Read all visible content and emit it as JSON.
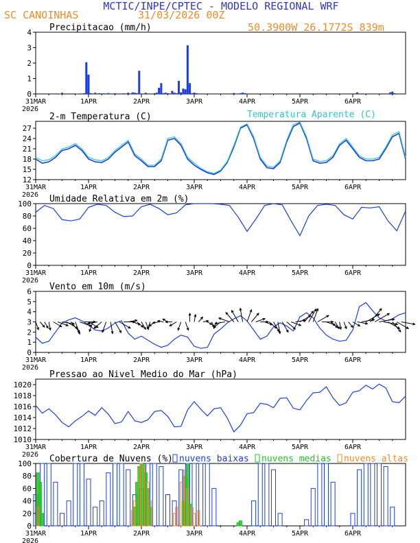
{
  "header": {
    "line1": "MCTIC/INPE/CPTEC - MODELO REGIONAL WRF",
    "location": "SC CANOINHAS",
    "run": "31/03/2026 00Z",
    "coords": "50.3900W 26.1772S 839m"
  },
  "colors": {
    "blue": "#1a3de8",
    "cyan": "#2ec7c7",
    "green": "#22c422",
    "orange": "#f28c28",
    "title": "#3036c8",
    "axis": "#000000"
  },
  "x_axis": {
    "ticks": [
      "31MAR",
      "1APR",
      "2APR",
      "3APR",
      "4APR",
      "5APR",
      "6APR"
    ],
    "year": "2026",
    "range_hours": [
      0,
      168
    ]
  },
  "chart_data": [
    {
      "type": "bar",
      "title": "Precipitacao (mm/h)",
      "ylim": [
        0,
        4
      ],
      "yticks": [
        "0",
        "1",
        "2",
        "3",
        "4"
      ],
      "x": [
        11,
        12,
        15,
        19,
        22,
        23,
        24,
        25,
        27,
        29,
        31,
        33,
        36,
        40,
        42,
        44,
        45,
        46,
        47,
        49,
        50,
        54,
        55,
        56,
        57,
        58,
        59,
        60,
        62,
        63,
        64,
        65,
        66,
        67,
        68,
        69,
        70,
        71,
        72,
        73,
        74,
        90,
        92,
        93,
        94,
        95,
        104,
        118,
        146,
        161,
        162,
        163
      ],
      "values": [
        0.02,
        0.08,
        0.03,
        0.02,
        0.05,
        2.05,
        1.25,
        0.05,
        0.08,
        0.05,
        0.04,
        0.06,
        0.05,
        0.04,
        0.08,
        0.1,
        0.08,
        0.05,
        1.5,
        0.03,
        0.08,
        0.05,
        0.08,
        0.4,
        0.7,
        0.05,
        0.08,
        0.05,
        0.2,
        0.08,
        0.05,
        0.85,
        0.1,
        0.35,
        0.3,
        3.15,
        0.7,
        0.05,
        0.08,
        0.05,
        0.03,
        0.06,
        0.03,
        0.05,
        0.08,
        0.05,
        0.03,
        0.03,
        0.1,
        0.1,
        0.15,
        0.05
      ]
    },
    {
      "type": "line",
      "title": "2-m Temperatura (C)",
      "legend": "Temperatura Aparente (C)",
      "ylim": [
        12,
        29
      ],
      "yticks": [
        "12",
        "15",
        "18",
        "21",
        "24",
        "27"
      ],
      "x": [
        0,
        3,
        6,
        9,
        12,
        15,
        18,
        21,
        24,
        27,
        30,
        33,
        36,
        39,
        42,
        45,
        48,
        51,
        54,
        57,
        60,
        63,
        66,
        69,
        72,
        75,
        78,
        81,
        84,
        87,
        90,
        93,
        96,
        99,
        102,
        105,
        108,
        111,
        114,
        117,
        120,
        123,
        126,
        129,
        132,
        135,
        138,
        141,
        144,
        147,
        150,
        153,
        156,
        159,
        162,
        165,
        168
      ],
      "series": [
        {
          "name": "Temperatura 2m",
          "values": [
            18,
            16.8,
            17.2,
            18.5,
            20.5,
            21,
            22,
            20.5,
            18,
            17.2,
            17,
            18,
            20,
            21.5,
            23,
            19,
            17.5,
            15.8,
            15.8,
            17.5,
            23.5,
            24,
            22,
            18,
            16.2,
            15,
            14,
            13.5,
            14.5,
            17,
            21.5,
            27,
            28,
            24,
            18,
            15.5,
            15.2,
            17,
            23,
            27.5,
            28.5,
            24,
            17.5,
            16.8,
            17,
            18.5,
            22,
            23.5,
            21,
            18.5,
            17.5,
            17.5,
            18,
            21,
            24.5,
            25.5,
            18
          ]
        },
        {
          "name": "Temperatura Aparente",
          "values": [
            18.5,
            17.5,
            17.8,
            19,
            21,
            21.5,
            22.5,
            21,
            18.5,
            17.8,
            17.5,
            18.5,
            20.5,
            22,
            23.5,
            19.5,
            18,
            16.2,
            16.2,
            18,
            24,
            24.5,
            22.5,
            18.5,
            16.8,
            15.3,
            14.3,
            13.8,
            14.8,
            17.3,
            22,
            27.3,
            28.3,
            24.5,
            18.5,
            16,
            15.6,
            17.5,
            23.5,
            28,
            28.8,
            24.5,
            18,
            17.3,
            17.5,
            19,
            22.5,
            24,
            21.5,
            19,
            18,
            18,
            18.5,
            21.5,
            25,
            26,
            18.5
          ]
        }
      ]
    },
    {
      "type": "line",
      "title": "Umidade Relativa em 2m (%)",
      "ylim": [
        0,
        100
      ],
      "yticks": [
        "0",
        "20",
        "40",
        "60",
        "80",
        "100"
      ],
      "x": [
        0,
        4,
        8,
        12,
        16,
        20,
        24,
        28,
        32,
        36,
        40,
        44,
        48,
        52,
        56,
        60,
        64,
        68,
        72,
        76,
        80,
        84,
        88,
        92,
        96,
        100,
        104,
        108,
        112,
        116,
        120,
        124,
        128,
        132,
        136,
        140,
        144,
        148,
        152,
        156,
        160,
        164,
        168
      ],
      "values": [
        86,
        97,
        92,
        74,
        72,
        75,
        94,
        99,
        97,
        86,
        79,
        80,
        95,
        99,
        92,
        82,
        85,
        98,
        100,
        100,
        100,
        99,
        97,
        78,
        55,
        75,
        97,
        100,
        98,
        72,
        48,
        80,
        97,
        99,
        97,
        82,
        75,
        94,
        93,
        95,
        72,
        56,
        88
      ]
    },
    {
      "type": "line",
      "title": "Vento em 10m (m/s)",
      "ylim": [
        0,
        6
      ],
      "yticks": [
        "0",
        "1",
        "2",
        "3",
        "4",
        "5",
        "6"
      ],
      "x": [
        0,
        3,
        6,
        9,
        12,
        15,
        18,
        21,
        24,
        27,
        30,
        33,
        36,
        39,
        42,
        45,
        48,
        51,
        54,
        57,
        60,
        63,
        66,
        69,
        72,
        75,
        78,
        81,
        84,
        87,
        90,
        93,
        96,
        99,
        102,
        105,
        108,
        111,
        114,
        117,
        120,
        123,
        126,
        129,
        132,
        135,
        138,
        141,
        144,
        147,
        150,
        153,
        156,
        159,
        162,
        165,
        168
      ],
      "values": [
        1.5,
        0.9,
        1.1,
        2,
        2.9,
        3.2,
        3.4,
        3.1,
        2.7,
        2.2,
        2.1,
        2.4,
        2.9,
        3.1,
        1.9,
        1.3,
        1.6,
        1.2,
        0.8,
        0.5,
        0.7,
        1.3,
        1.7,
        1.5,
        0.6,
        0.4,
        0.5,
        1.8,
        2.3,
        2.9,
        3.3,
        3.6,
        3.1,
        2.2,
        1.3,
        1.6,
        2.5,
        2.9,
        2.6,
        2.1,
        3.5,
        3.9,
        3.4,
        2.4,
        1.7,
        1.3,
        1.1,
        1.2,
        2.2,
        4.5,
        4.9,
        4.1,
        3.4,
        3.1,
        3.3,
        3.7,
        3.9
      ]
    },
    {
      "type": "line",
      "title": "Pressao ao Nivel Medio do Mar (hPa)",
      "ylim": [
        1010,
        1021
      ],
      "yticks": [
        "1010",
        "1012",
        "1014",
        "1016",
        "1018",
        "1020"
      ],
      "x": [
        0,
        3,
        6,
        9,
        12,
        15,
        18,
        21,
        24,
        27,
        30,
        33,
        36,
        39,
        42,
        45,
        48,
        51,
        54,
        57,
        60,
        63,
        66,
        69,
        72,
        75,
        78,
        81,
        84,
        87,
        90,
        93,
        96,
        99,
        102,
        105,
        108,
        111,
        114,
        117,
        120,
        123,
        126,
        129,
        132,
        135,
        138,
        141,
        144,
        147,
        150,
        153,
        156,
        159,
        162,
        165,
        168
      ],
      "values": [
        1016.2,
        1014.8,
        1015.6,
        1014.5,
        1013.1,
        1012.3,
        1013.4,
        1014.2,
        1015.2,
        1014.4,
        1015.8,
        1014.6,
        1012.9,
        1013.2,
        1015.1,
        1013.4,
        1013.1,
        1013.6,
        1015.1,
        1015.3,
        1014.2,
        1012.3,
        1012.4,
        1015.4,
        1016.9,
        1015.5,
        1014.3,
        1015.6,
        1015.8,
        1013.9,
        1011.4,
        1012.6,
        1014.7,
        1014.9,
        1016.6,
        1016.4,
        1015.8,
        1017.5,
        1017.6,
        1015.7,
        1015.4,
        1017.1,
        1018.5,
        1018.6,
        1019.6,
        1017.6,
        1016.2,
        1016.7,
        1018.6,
        1018.9,
        1019.9,
        1019.2,
        1020.1,
        1019.4,
        1016.9,
        1016.7,
        1017.9
      ]
    },
    {
      "type": "bar",
      "title": "Cobertura de Nuvens (%)",
      "ylim": [
        0,
        100
      ],
      "yticks": [
        "0",
        "20",
        "40",
        "60",
        "80",
        "100"
      ],
      "legend": [
        "nuvens baixas",
        "nuvens medias",
        "nuvens altas"
      ],
      "series": [
        {
          "name": "nuvens baixas",
          "x": [
            0,
            3,
            6,
            9,
            12,
            15,
            18,
            21,
            24,
            27,
            30,
            33,
            36,
            39,
            42,
            45,
            48,
            51,
            54,
            57,
            60,
            63,
            66,
            69,
            72,
            75,
            78,
            81,
            84,
            87,
            90,
            93,
            96,
            99,
            102,
            105,
            108,
            111,
            114,
            117,
            120,
            123,
            126,
            129,
            132,
            135,
            138,
            141,
            144,
            147,
            150,
            153,
            156,
            159,
            162,
            165,
            168
          ],
          "values": [
            50,
            100,
            100,
            70,
            20,
            40,
            100,
            100,
            75,
            30,
            40,
            85,
            100,
            100,
            90,
            50,
            60,
            100,
            100,
            95,
            50,
            40,
            90,
            100,
            100,
            100,
            100,
            60,
            0,
            0,
            0,
            0,
            0,
            40,
            100,
            100,
            90,
            20,
            0,
            0,
            0,
            10,
            60,
            100,
            100,
            70,
            0,
            0,
            20,
            90,
            100,
            100,
            100,
            95,
            30,
            0,
            0
          ]
        },
        {
          "name": "nuvens medias",
          "x": [
            1,
            2,
            3,
            45,
            46,
            47,
            48,
            49,
            50,
            51,
            52,
            67,
            68,
            69,
            70,
            92,
            93
          ],
          "values": [
            85,
            70,
            20,
            30,
            70,
            95,
            100,
            98,
            85,
            60,
            30,
            40,
            80,
            100,
            35,
            5,
            8
          ]
        },
        {
          "name": "nuvens altas",
          "x": [
            1,
            44,
            45,
            47,
            48,
            49,
            51,
            52,
            63,
            64,
            66,
            67,
            69,
            71,
            72,
            74
          ],
          "values": [
            30,
            25,
            40,
            90,
            100,
            95,
            70,
            40,
            20,
            30,
            70,
            90,
            60,
            30,
            20,
            25
          ]
        }
      ]
    }
  ],
  "wind_barbs": {
    "x_hours": [
      0,
      2,
      4,
      6,
      8,
      10,
      12,
      14,
      16,
      18,
      20,
      22,
      24,
      26,
      28,
      30,
      32,
      34,
      36,
      38,
      40,
      42,
      44,
      46,
      48,
      50,
      52,
      54,
      56,
      58,
      60,
      62,
      64,
      66,
      68,
      70,
      72,
      74,
      76,
      78,
      80,
      82,
      84,
      86,
      88,
      90,
      92,
      94,
      96,
      98,
      100,
      102,
      104,
      106,
      108,
      110,
      112,
      114,
      116,
      118,
      120,
      122,
      124,
      126,
      128,
      130,
      132,
      134,
      136,
      138,
      140,
      142,
      144,
      146,
      148,
      150,
      152,
      154,
      156,
      158,
      160,
      162,
      164,
      166
    ],
    "direction_deg": [
      160,
      140,
      150,
      170,
      120,
      110,
      100,
      120,
      140,
      160,
      110,
      90,
      120,
      200,
      260,
      230,
      200,
      170,
      150,
      120,
      90,
      80,
      110,
      130,
      150,
      160,
      200,
      230,
      260,
      280,
      300,
      270,
      240,
      200,
      160,
      0,
      10,
      40,
      80,
      120,
      160,
      200,
      230,
      260,
      290,
      320,
      330,
      350,
      20,
      40,
      70,
      90,
      110,
      130,
      150,
      170,
      150,
      130,
      110,
      80,
      60,
      40,
      30,
      20,
      60,
      90,
      110,
      130,
      150,
      170,
      160,
      140,
      120,
      100,
      80,
      60,
      40,
      60,
      80,
      100,
      120,
      140,
      120,
      100
    ],
    "speed": [
      1.5,
      1,
      1.1,
      1.5,
      2,
      2.5,
      3,
      3.2,
      3.4,
      3.2,
      3,
      2.6,
      2.5,
      2.2,
      2.1,
      2.2,
      2.5,
      2.8,
      3,
      3.1,
      2.5,
      1.8,
      1.5,
      1.5,
      1.6,
      1.4,
      1.2,
      1,
      0.8,
      0.6,
      0.6,
      0.9,
      1.4,
      1.7,
      1.7,
      1.6,
      1.2,
      0.8,
      0.5,
      0.4,
      0.5,
      1,
      1.8,
      2.2,
      2.6,
      3,
      3.3,
      3.5,
      3.2,
      2.6,
      2,
      1.4,
      1.5,
      2.1,
      2.5,
      2.8,
      2.8,
      2.6,
      2.3,
      2.1,
      3,
      3.6,
      3.9,
      3.6,
      3.2,
      2.6,
      2,
      1.7,
      1.4,
      1.2,
      1.1,
      1.1,
      1.5,
      2.3,
      3.2,
      4.2,
      4.8,
      4.6,
      4.1,
      3.7,
      3.4,
      3.2,
      3.4,
      3.6
    ]
  }
}
